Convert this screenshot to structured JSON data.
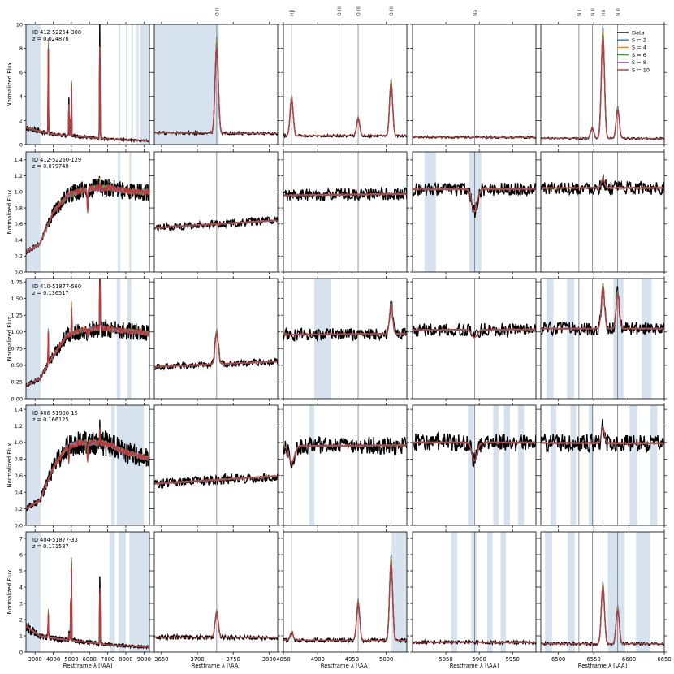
{
  "chart_data": {
    "type": "line",
    "ylabel": "Normalized Flux",
    "xlabel": "Restframe λ [\\AA]",
    "line_marks": [
      "O II",
      "Hβ",
      "O III",
      "O III",
      "O III",
      "Na",
      "N I",
      "N II",
      "Hα",
      "N II"
    ],
    "legend": {
      "placement": "top-right",
      "entries": [
        {
          "label": "Data",
          "color": "#000000"
        },
        {
          "label": "S = 2",
          "color": "#1f77b4"
        },
        {
          "label": "S = 4",
          "color": "#ff7f0e"
        },
        {
          "label": "S = 6",
          "color": "#2ca02c"
        },
        {
          "label": "S = 8",
          "color": "#9467bd"
        },
        {
          "label": "S = 10",
          "color": "#d62728"
        }
      ]
    },
    "columns": [
      {
        "xlim": [
          2500,
          9300
        ],
        "xticks": [
          "3000",
          "4000",
          "5000",
          "6000",
          "7000",
          "8000",
          "9000"
        ],
        "tick_values": [
          3000,
          4000,
          5000,
          6000,
          7000,
          8000,
          9000
        ]
      },
      {
        "xlim": [
          3640,
          3812
        ],
        "xticks": [
          "3650",
          "3700",
          "3750",
          "3800"
        ],
        "tick_values": [
          3650,
          3700,
          3750,
          3800
        ]
      },
      {
        "xlim": [
          4850,
          5030
        ],
        "xticks": [
          "4850",
          "4900",
          "4950",
          "5000"
        ],
        "tick_values": [
          4850,
          4900,
          4950,
          5000
        ]
      },
      {
        "xlim": [
          5800,
          5985
        ],
        "xticks": [
          "5850",
          "5900",
          "5950"
        ],
        "tick_values": [
          5850,
          5900,
          5950
        ]
      },
      {
        "xlim": [
          6475,
          6650
        ],
        "xticks": [
          "6500",
          "6550",
          "6600",
          "6650"
        ],
        "tick_values": [
          6500,
          6550,
          6600,
          6650
        ]
      }
    ],
    "line_positions": [
      {
        "label": "O II",
        "col": 1,
        "x": 3727
      },
      {
        "label": "Hβ",
        "col": 2,
        "x": 4862
      },
      {
        "label": "O III",
        "col": 2,
        "x": 4931
      },
      {
        "label": "O III",
        "col": 2,
        "x": 4959
      },
      {
        "label": "O III",
        "col": 2,
        "x": 5007
      },
      {
        "label": "Na",
        "col": 3,
        "x": 5893
      },
      {
        "label": "N I",
        "col": 4,
        "x": 6529
      },
      {
        "label": "N II",
        "col": 4,
        "x": 6548
      },
      {
        "label": "Hα",
        "col": 4,
        "x": 6563
      },
      {
        "label": "N II",
        "col": 4,
        "x": 6584
      }
    ],
    "rows": [
      {
        "id": "ID 412-52254-308",
        "z": "z = 0.024876",
        "ylim": [
          0,
          10
        ],
        "yticks": [
          "0",
          "2",
          "4",
          "6",
          "8",
          "10"
        ],
        "ytick_values": [
          0,
          2,
          4,
          6,
          8,
          10
        ],
        "base": [
          1.4,
          1.1,
          0.85,
          0.75,
          0.65,
          0.55,
          0.45,
          0.4,
          0.35,
          0.3
        ],
        "emission": [
          [
            3727,
            7.5
          ],
          [
            4862,
            3.2
          ],
          [
            4959,
            1.5
          ],
          [
            5007,
            4.5
          ],
          [
            6563,
            8.8
          ],
          [
            6584,
            2.5
          ],
          [
            6548,
            0.9
          ]
        ],
        "absorption": [],
        "noise": 0.08,
        "masks": [
          [
            [
              2500,
              3300
            ],
            [
              7600,
              7700
            ],
            [
              8000,
              8100
            ],
            [
              8300,
              8400
            ],
            [
              8600,
              8700
            ],
            [
              8800,
              9300
            ]
          ],
          [
            [
              3640,
              3730
            ]
          ],
          [],
          [],
          []
        ]
      },
      {
        "id": "ID 412-52250-129",
        "z": "z = 0.079748",
        "ylim": [
          0,
          1.5
        ],
        "yticks": [
          "0.0",
          "0.2",
          "0.4",
          "0.6",
          "0.8",
          "1.0",
          "1.2",
          "1.4"
        ],
        "ytick_values": [
          0,
          0.2,
          0.4,
          0.6,
          0.8,
          1.0,
          1.2,
          1.4
        ],
        "base": [
          0.25,
          0.35,
          0.75,
          0.95,
          1.02,
          1.05,
          1.05,
          1.02,
          1.0,
          1.0
        ],
        "emission": [
          [
            6563,
            0.12
          ]
        ],
        "absorption": [
          [
            5893,
            0.28
          ]
        ],
        "noise": 0.05,
        "masks": [
          [
            [
              2500,
              3300
            ],
            [
              7550,
              7700
            ],
            [
              8200,
              8300
            ]
          ],
          [],
          [],
          [
            [
              5818,
              5835
            ],
            [
              5885,
              5903
            ]
          ],
          []
        ]
      },
      {
        "id": "ID 410-51877-560",
        "z": "z = 0.136517",
        "ylim": [
          0,
          1.8
        ],
        "yticks": [
          "0.00",
          "0.25",
          "0.50",
          "0.75",
          "1.00",
          "1.25",
          "1.50",
          "1.75"
        ],
        "ytick_values": [
          0,
          0.25,
          0.5,
          0.75,
          1.0,
          1.25,
          1.5,
          1.75
        ],
        "base": [
          0.2,
          0.3,
          0.65,
          0.95,
          1.02,
          1.05,
          1.05,
          1.02,
          1.0,
          0.98
        ],
        "emission": [
          [
            3727,
            0.5
          ],
          [
            5007,
            0.45
          ],
          [
            6563,
            0.65
          ],
          [
            6584,
            0.55
          ]
        ],
        "absorption": [
          [
            5893,
            0.12
          ]
        ],
        "noise": 0.06,
        "masks": [
          [
            [
              2500,
              3300
            ],
            [
              7500,
              7700
            ],
            [
              8100,
              8300
            ]
          ],
          [],
          [
            [
              4895,
              4920
            ]
          ],
          [],
          [
            [
              6483,
              6493
            ],
            [
              6512,
              6522
            ],
            [
              6578,
              6592
            ],
            [
              6618,
              6632
            ]
          ]
        ]
      },
      {
        "id": "ID 406-51900-15",
        "z": "z = 0.166125",
        "ylim": [
          0,
          1.45
        ],
        "yticks": [
          "0.0",
          "0.2",
          "0.4",
          "0.6",
          "0.8",
          "1.0",
          "1.2",
          "1.4"
        ],
        "ytick_values": [
          0,
          0.2,
          0.4,
          0.6,
          0.8,
          1.0,
          1.2,
          1.4
        ],
        "base": [
          0.2,
          0.3,
          0.7,
          0.95,
          1.0,
          1.0,
          0.98,
          0.9,
          0.85,
          0.8
        ],
        "emission": [
          [
            6563,
            0.2
          ]
        ],
        "absorption": [
          [
            4862,
            0.2
          ],
          [
            5893,
            0.22
          ]
        ],
        "noise": 0.07,
        "masks": [
          [
            [
              2500,
              3300
            ],
            [
              7200,
              7400
            ],
            [
              7500,
              9000
            ]
          ],
          [],
          [
            [
              4888,
              4895
            ]
          ],
          [
            [
              5883,
              5892
            ],
            [
              5921,
              5929
            ],
            [
              5937,
              5946
            ],
            [
              5958,
              5967
            ]
          ],
          [
            [
              6489,
              6497
            ],
            [
              6517,
              6525
            ],
            [
              6543,
              6551
            ],
            [
              6601,
              6612
            ],
            [
              6630,
              6640
            ]
          ]
        ]
      },
      {
        "id": "ID 404-51877-33",
        "z": "z = 0.171587",
        "ylim": [
          0,
          7.4
        ],
        "yticks": [
          "0",
          "1",
          "2",
          "3",
          "4",
          "5",
          "6",
          "7"
        ],
        "ytick_values": [
          0,
          1,
          2,
          3,
          4,
          5,
          6,
          7
        ],
        "base": [
          1.6,
          1.0,
          0.85,
          0.75,
          0.65,
          0.55,
          0.45,
          0.4,
          0.35,
          0.3
        ],
        "emission": [
          [
            3727,
            1.6
          ],
          [
            4959,
            2.4
          ],
          [
            5007,
            5.0
          ],
          [
            6563,
            3.6
          ],
          [
            6584,
            2.2
          ],
          [
            4862,
            0.5
          ]
        ],
        "absorption": [],
        "noise": 0.1,
        "masks": [
          [
            [
              2500,
              3300
            ],
            [
              7100,
              7400
            ],
            [
              7600,
              8000
            ],
            [
              8200,
              9300
            ]
          ],
          [],
          [
            [
              5008,
              5030
            ]
          ],
          [
            [
              5858,
              5867
            ],
            [
              5888,
              5897
            ],
            [
              5912,
              5920
            ],
            [
              5932,
              5940
            ]
          ],
          [
            [
              6481,
              6491
            ],
            [
              6513,
              6523
            ],
            [
              6570,
              6594
            ],
            [
              6610,
              6630
            ]
          ]
        ]
      }
    ]
  }
}
